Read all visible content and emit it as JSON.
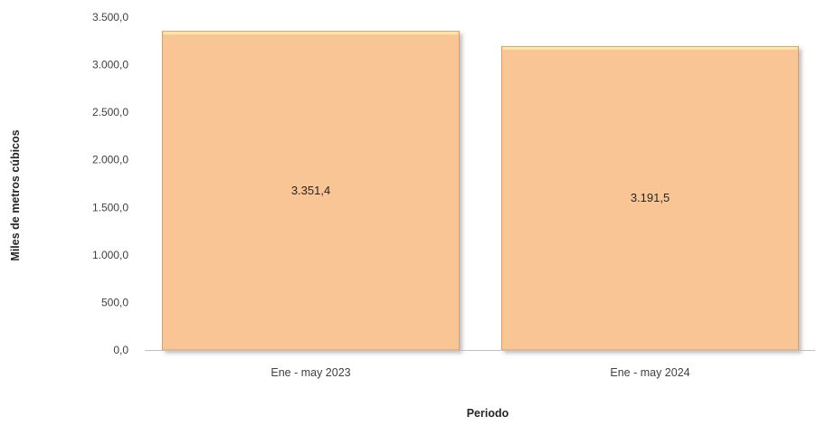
{
  "chart_data": {
    "type": "bar",
    "title": "",
    "xlabel": "Periodo",
    "ylabel": "Miles de metros cúbicos",
    "categories": [
      "Ene - may 2023",
      "Ene - may 2024"
    ],
    "values": [
      3351.4,
      3191.5
    ],
    "data_labels": [
      "3.351,4",
      "3.191,5"
    ],
    "ylim": [
      0,
      3500
    ],
    "yticks": [
      0,
      500,
      1000,
      1500,
      2000,
      2500,
      3000,
      3500
    ],
    "ytick_labels": [
      "0,0",
      "500,0",
      "1.000,0",
      "1.500,0",
      "2.000,0",
      "2.500,0",
      "3.000,0",
      "3.500,0"
    ],
    "grid": false,
    "legend": "none",
    "colors": {
      "bar_fill": "#f9c595",
      "bar_top": "#fbe7a9",
      "bar_edge": "#d9a06a",
      "axis": "#bfbfbf"
    }
  }
}
